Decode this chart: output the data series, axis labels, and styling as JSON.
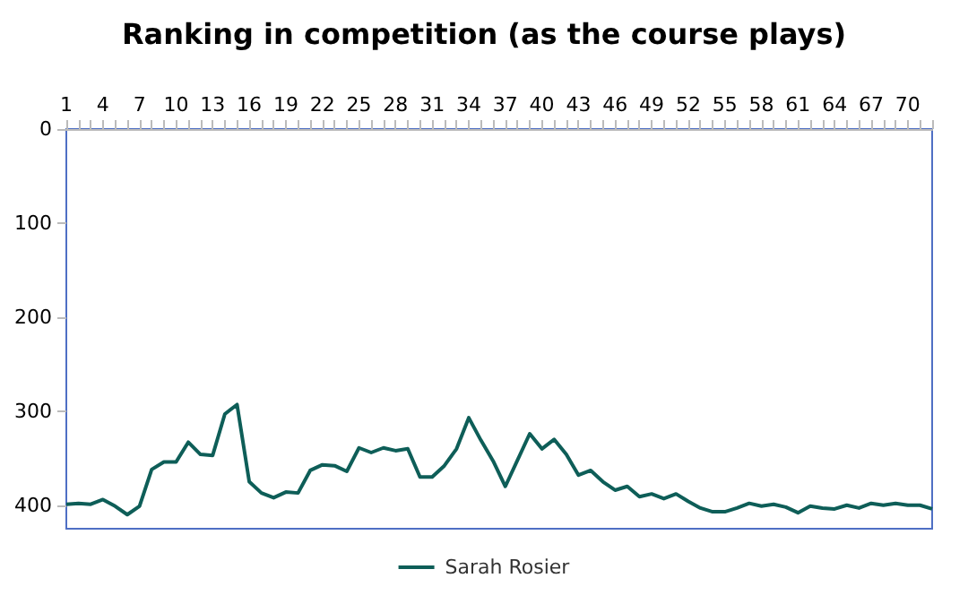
{
  "chart_data": {
    "type": "line",
    "title": "Ranking in competition (as the course plays)",
    "categories": [
      "1",
      null,
      null,
      "4",
      null,
      null,
      "7",
      null,
      null,
      "10",
      null,
      null,
      "13",
      null,
      null,
      "16",
      null,
      null,
      "19",
      null,
      null,
      "22",
      null,
      null,
      "25",
      null,
      null,
      "28",
      null,
      null,
      "31",
      null,
      null,
      "34",
      null,
      null,
      "37",
      null,
      null,
      "40",
      null,
      null,
      "43",
      null,
      null,
      "46",
      null,
      null,
      "49",
      null,
      null,
      "52",
      null,
      null,
      "55",
      null,
      null,
      "58",
      null,
      null,
      "61",
      null,
      null,
      "64",
      null,
      null,
      "67",
      null,
      null,
      "70",
      null,
      null
    ],
    "series": [
      {
        "name": "Sarah Rosier",
        "color": "#0e5e58",
        "values": [
          399,
          398,
          399,
          394,
          401,
          410,
          401,
          362,
          354,
          354,
          333,
          346,
          347,
          303,
          293,
          375,
          387,
          392,
          386,
          387,
          363,
          357,
          358,
          364,
          339,
          344,
          339,
          342,
          340,
          370,
          370,
          358,
          340,
          307,
          331,
          353,
          380,
          352,
          324,
          340,
          330,
          346,
          368,
          363,
          375,
          384,
          380,
          391,
          388,
          393,
          388,
          396,
          403,
          407,
          407,
          403,
          398,
          401,
          399,
          402,
          408,
          401,
          403,
          404,
          400,
          403,
          398,
          400,
          398,
          400,
          400,
          404
        ]
      }
    ],
    "ylim": [
      425,
      0
    ],
    "yticks": [
      0,
      100,
      200,
      300,
      400
    ],
    "grid": false,
    "legend": "bottom",
    "marker": "none",
    "line_style": "solid"
  }
}
